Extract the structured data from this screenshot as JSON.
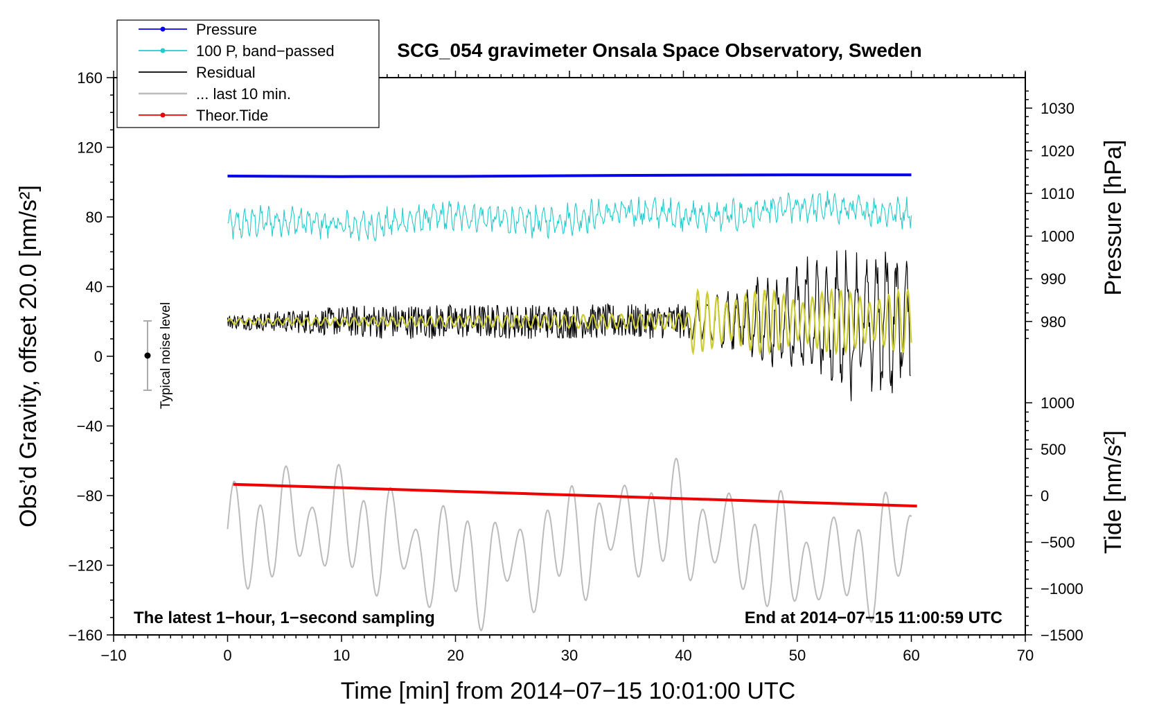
{
  "chart_data": {
    "type": "line",
    "title": "SCG_054 gravimeter Onsala Space Observatory, Sweden",
    "xlabel": "Time [min] from 2014−07−15 10:01:00 UTC",
    "ylabel_left": "Obs’d Gravity, offset 20.0 [nm/s²]",
    "ylabel_right_top": "Pressure [hPa]",
    "ylabel_right_bottom": "Tide [nm/s²]",
    "xlim": [
      -10,
      70
    ],
    "ylim": [
      -160,
      160
    ],
    "xticks": [
      "−10",
      "0",
      "10",
      "20",
      "30",
      "40",
      "50",
      "60",
      "70"
    ],
    "xtick_values": [
      -10,
      0,
      10,
      20,
      30,
      40,
      50,
      60,
      70
    ],
    "yticks": [
      "160",
      "120",
      "80",
      "40",
      "0",
      "−40",
      "−80",
      "−120",
      "−160"
    ],
    "ytick_values": [
      160,
      120,
      80,
      40,
      0,
      -40,
      -80,
      -120,
      -160
    ],
    "pressure_axis": {
      "ticks": [
        "1030",
        "1020",
        "1010",
        "1000",
        "990",
        "980"
      ],
      "values": [
        1030,
        1020,
        1010,
        1000,
        990,
        980
      ],
      "gravity_at_980": 20,
      "gravity_per_hpa": 2.45
    },
    "tide_axis": {
      "ticks": [
        "1000",
        "500",
        "0",
        "−500",
        "−1000",
        "−1500"
      ],
      "values": [
        1000,
        500,
        0,
        -500,
        -1000,
        -1500
      ],
      "gravity_at_0": -80,
      "gravity_per_unit": 0.0533
    },
    "legend": [
      {
        "label": "Pressure",
        "color": "#0000ee",
        "marker": true
      },
      {
        "label": "100 P, band−passed",
        "color": "#22cccc",
        "marker": true
      },
      {
        "label": "Residual",
        "color": "#000000",
        "marker": false
      },
      {
        "label": "... last 10 min.",
        "color": "#bbbbbb",
        "marker": false
      },
      {
        "label": "Theor.Tide",
        "color": "#ee0000",
        "marker": true
      }
    ],
    "series": [
      {
        "name": "Pressure",
        "color": "#0000ee",
        "x": [
          0,
          10,
          20,
          30,
          40,
          50,
          60
        ],
        "y": [
          103.5,
          103.2,
          103.3,
          103.7,
          104.0,
          104.2,
          104.2
        ]
      },
      {
        "name": "100 P, band−passed",
        "color": "#22cccc",
        "x": [
          0,
          60
        ],
        "center": [
          75,
          85
        ],
        "amp": 9
      },
      {
        "name": "Residual",
        "color": "#000000",
        "x": [
          0,
          60
        ],
        "baseline": 20,
        "amp_early": 4,
        "amp_mid": 10,
        "amp_late": 45,
        "onset": 40.6
      },
      {
        "name": "Smoothed residual",
        "color": "#cccc33",
        "x": [
          0,
          60
        ],
        "baseline": 20,
        "amp_early": 1.5,
        "amp_late": 18,
        "onset": 40.6
      },
      {
        "name": "... last 10 min.",
        "color": "#bbbbbb",
        "x": [
          0,
          60
        ],
        "center": -108,
        "amp": 35
      },
      {
        "name": "Theor.Tide",
        "color": "#ee0000",
        "x": [
          0.5,
          60.5
        ],
        "y": [
          -73.5,
          -86
        ]
      }
    ],
    "noise_marker": {
      "x": -7,
      "y": 0,
      "low": -20,
      "high": 20,
      "label": "Typical noise level"
    },
    "annotations": {
      "bottom_left": "The latest 1−hour, 1−second sampling",
      "bottom_right": "End at 2014−07−15 11:00:59 UTC"
    }
  }
}
